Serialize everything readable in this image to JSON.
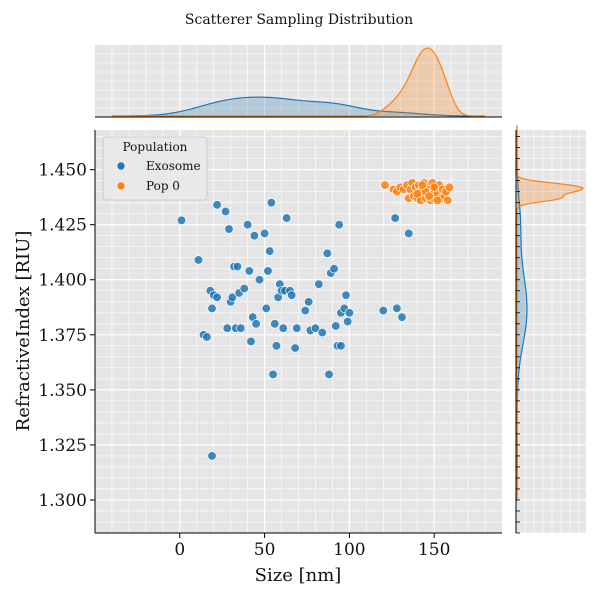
{
  "chart_data": {
    "type": "scatter",
    "title": "Scatterer Sampling Distribution",
    "xlabel": "Size [nm]",
    "ylabel": "RefractiveIndex [RIU]",
    "xlim": [
      -50,
      190
    ],
    "ylim": [
      1.285,
      1.468
    ],
    "xticks": [
      0,
      50,
      100,
      150
    ],
    "yticks": [
      1.3,
      1.325,
      1.35,
      1.375,
      1.4,
      1.425,
      1.45
    ],
    "xtick_labels": [
      "0",
      "50",
      "100",
      "150"
    ],
    "ytick_labels": [
      "1.300",
      "1.325",
      "1.350",
      "1.375",
      "1.400",
      "1.425",
      "1.450"
    ],
    "grid": true,
    "marginal_plots": "kde",
    "legend": {
      "title": "Population",
      "placement": "top-left"
    },
    "series": [
      {
        "name": "Exosome",
        "color": "#1f77b4",
        "x": [
          1,
          11,
          14,
          16,
          18,
          19,
          20,
          22,
          22,
          27,
          28,
          29,
          30,
          31,
          32,
          33,
          34,
          35,
          36,
          38,
          40,
          41,
          42,
          43,
          44,
          45,
          47,
          50,
          51,
          52,
          53,
          54,
          55,
          56,
          57,
          58,
          59,
          60,
          61,
          62,
          63,
          65,
          66,
          68,
          69,
          74,
          76,
          77,
          80,
          82,
          84,
          87,
          88,
          89,
          91,
          92,
          93,
          94,
          95,
          95,
          97,
          98,
          99,
          100,
          120,
          127,
          128,
          131,
          135,
          19
        ],
        "y": [
          1.427,
          1.409,
          1.375,
          1.374,
          1.395,
          1.387,
          1.393,
          1.434,
          1.392,
          1.431,
          1.378,
          1.423,
          1.39,
          1.392,
          1.406,
          1.378,
          1.406,
          1.394,
          1.378,
          1.396,
          1.425,
          1.404,
          1.372,
          1.383,
          1.42,
          1.38,
          1.4,
          1.421,
          1.387,
          1.404,
          1.413,
          1.435,
          1.357,
          1.38,
          1.37,
          1.392,
          1.398,
          1.395,
          1.378,
          1.395,
          1.428,
          1.395,
          1.393,
          1.369,
          1.378,
          1.386,
          1.39,
          1.377,
          1.378,
          1.398,
          1.376,
          1.412,
          1.357,
          1.403,
          1.405,
          1.379,
          1.37,
          1.425,
          1.385,
          1.37,
          1.387,
          1.393,
          1.381,
          1.385,
          1.386,
          1.428,
          1.387,
          1.383,
          1.421,
          1.32
        ]
      },
      {
        "name": "Pop 0",
        "color": "#ff7f0e",
        "x": [
          121,
          126,
          128,
          130,
          132,
          134,
          135,
          136,
          137,
          138,
          139,
          140,
          141,
          142,
          142,
          143,
          144,
          145,
          146,
          146,
          147,
          148,
          149,
          150,
          150,
          151,
          152,
          153,
          154,
          155,
          156,
          157,
          158,
          159,
          140,
          145,
          150,
          152,
          147,
          143
        ],
        "y": [
          1.443,
          1.441,
          1.44,
          1.442,
          1.441,
          1.443,
          1.437,
          1.441,
          1.444,
          1.438,
          1.442,
          1.437,
          1.443,
          1.44,
          1.436,
          1.441,
          1.444,
          1.437,
          1.442,
          1.439,
          1.441,
          1.436,
          1.444,
          1.44,
          1.437,
          1.442,
          1.439,
          1.443,
          1.437,
          1.441,
          1.438,
          1.44,
          1.436,
          1.442,
          1.439,
          1.44,
          1.442,
          1.436,
          1.438,
          1.443
        ]
      }
    ]
  }
}
